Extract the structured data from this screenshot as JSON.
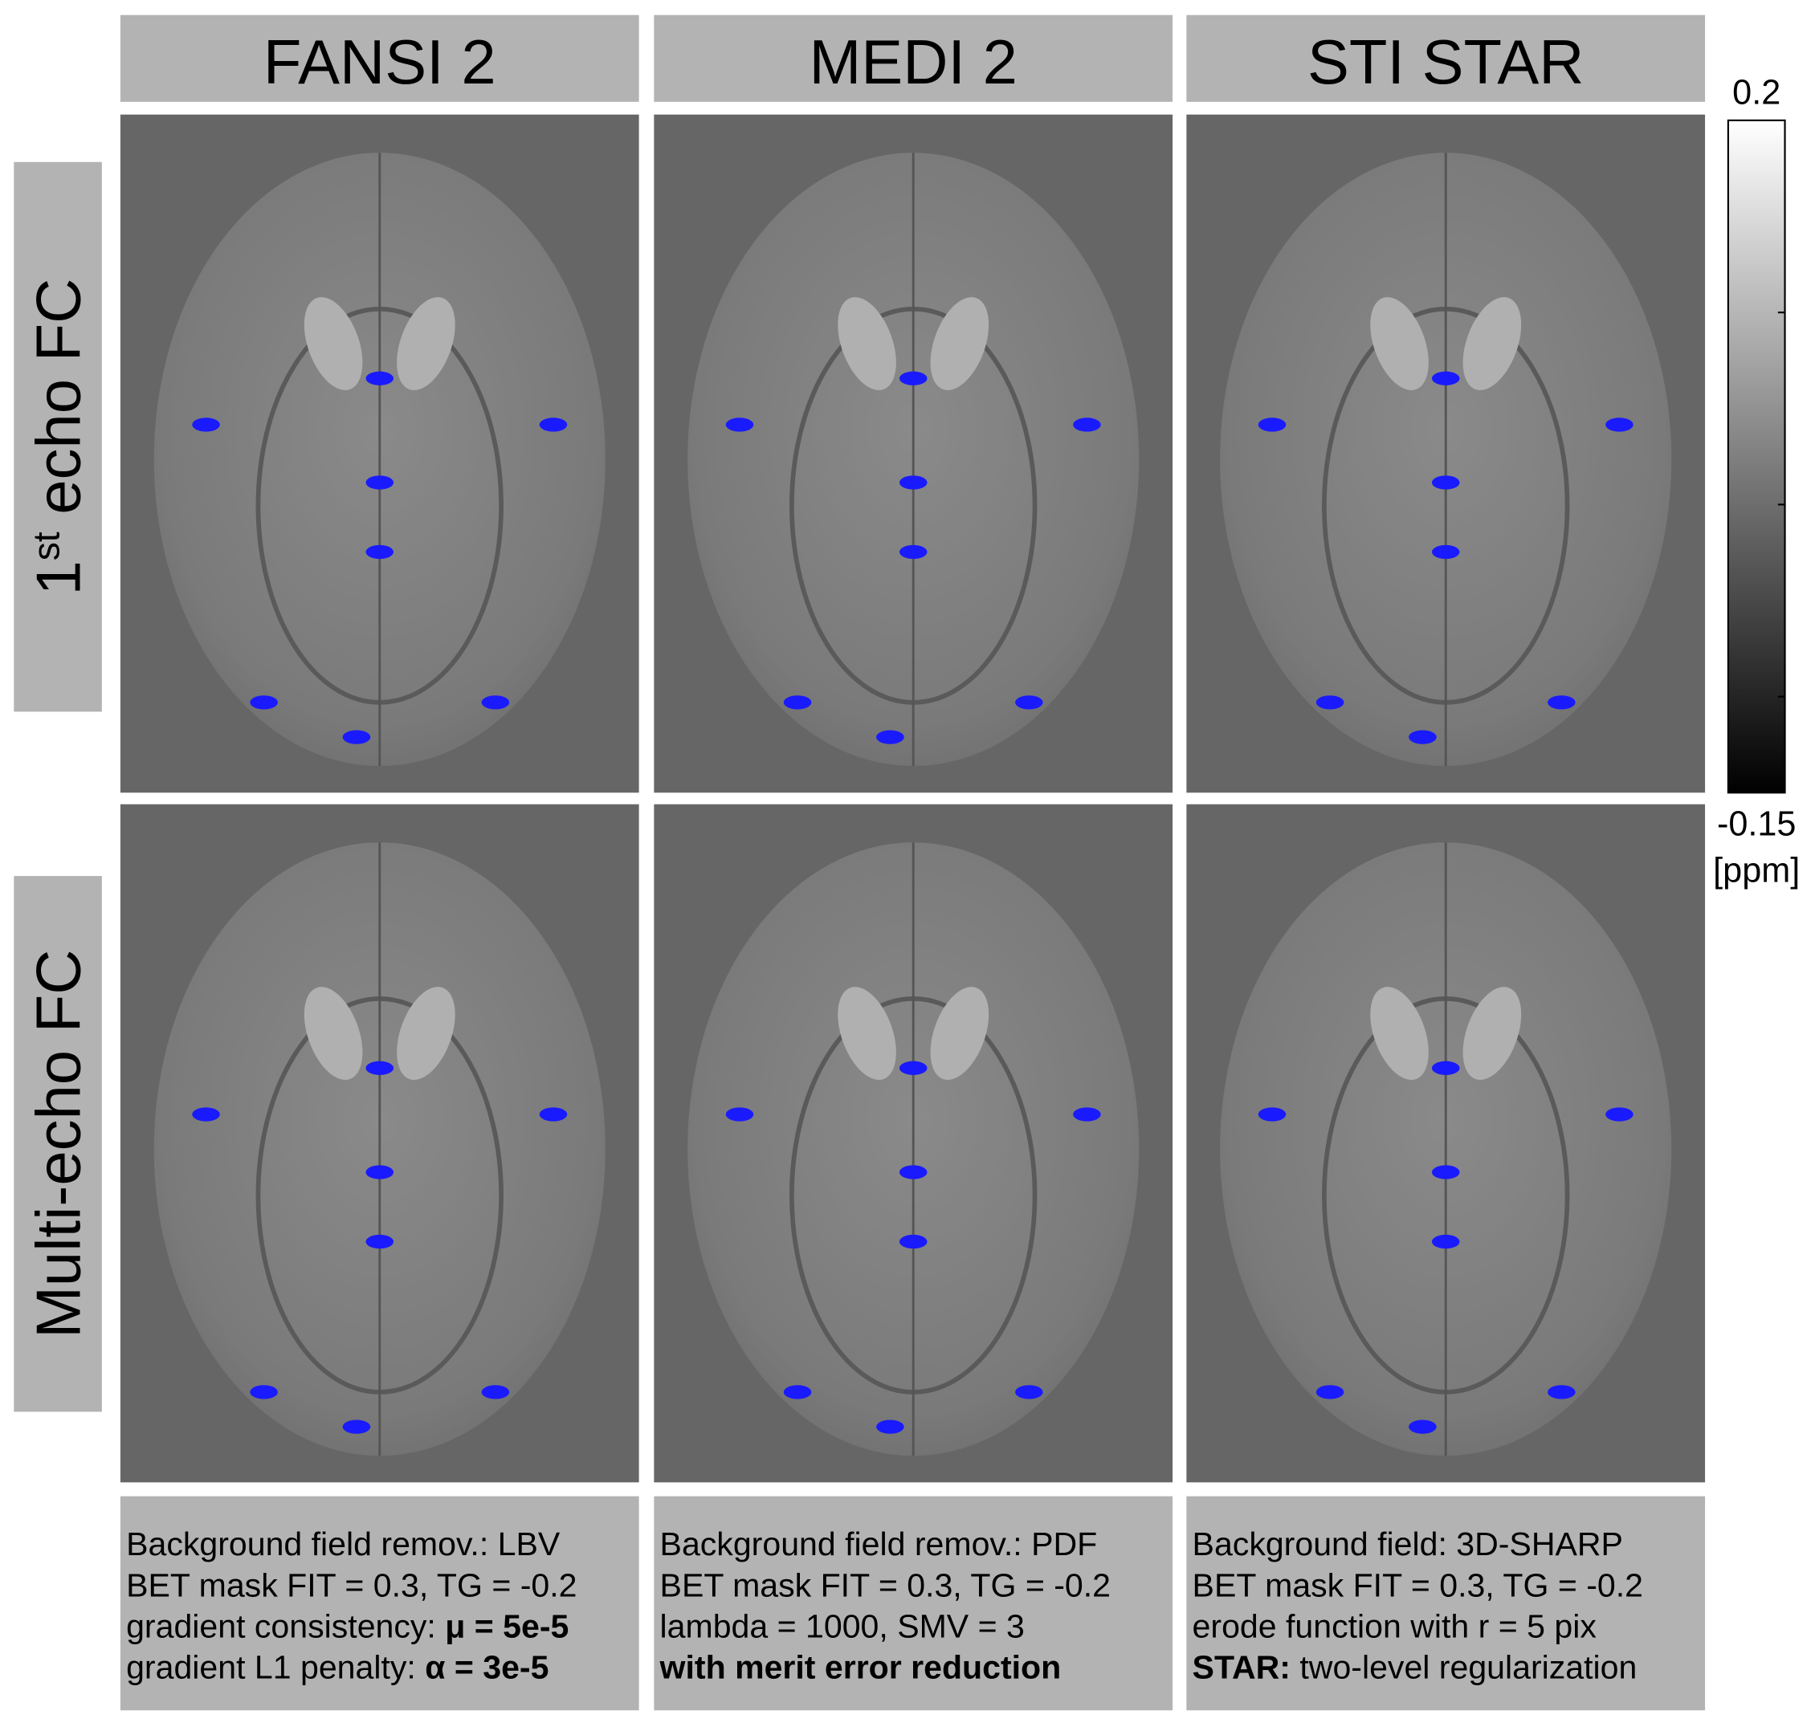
{
  "columns": [
    "FANSI 2",
    "MEDI 2",
    "STI STAR"
  ],
  "rows": [
    [
      {
        "text": "1"
      },
      {
        "text": "st",
        "sup": true
      },
      {
        "text": " echo FC"
      }
    ],
    [
      {
        "text": "Multi-echo FC"
      }
    ]
  ],
  "colorbar": {
    "max": 0.2,
    "min": -0.15,
    "ticks": [
      0.1,
      0,
      -0.1
    ],
    "unit": "[ppm]"
  },
  "notes": [
    [
      [
        {
          "text": "Background field remov.: LBV"
        }
      ],
      [
        {
          "text": "BET mask FIT = 0.3, TG = -0.2"
        }
      ],
      [
        {
          "text": "gradient consistency: "
        },
        {
          "text": "μ = 5e-5",
          "bold": true
        }
      ],
      [
        {
          "text": "gradient L1 penalty: "
        },
        {
          "text": "α = 3e-5",
          "bold": true
        }
      ]
    ],
    [
      [
        {
          "text": "Background field remov.: PDF"
        }
      ],
      [
        {
          "text": "BET mask FIT = 0.3, TG = -0.2"
        }
      ],
      [
        {
          "text": "lambda = 1000, SMV = 3"
        }
      ],
      [
        {
          "text": "with merit error reduction",
          "bold": true
        }
      ]
    ],
    [
      [
        {
          "text": "Background field: 3D-SHARP"
        }
      ],
      [
        {
          "text": "BET mask FIT = 0.3, TG = -0.2"
        }
      ],
      [
        {
          "text": "erode function with r = 5 pix"
        }
      ],
      [
        {
          "text": "STAR:",
          "bold": true
        },
        {
          "text": " two-level regularization"
        }
      ]
    ]
  ]
}
